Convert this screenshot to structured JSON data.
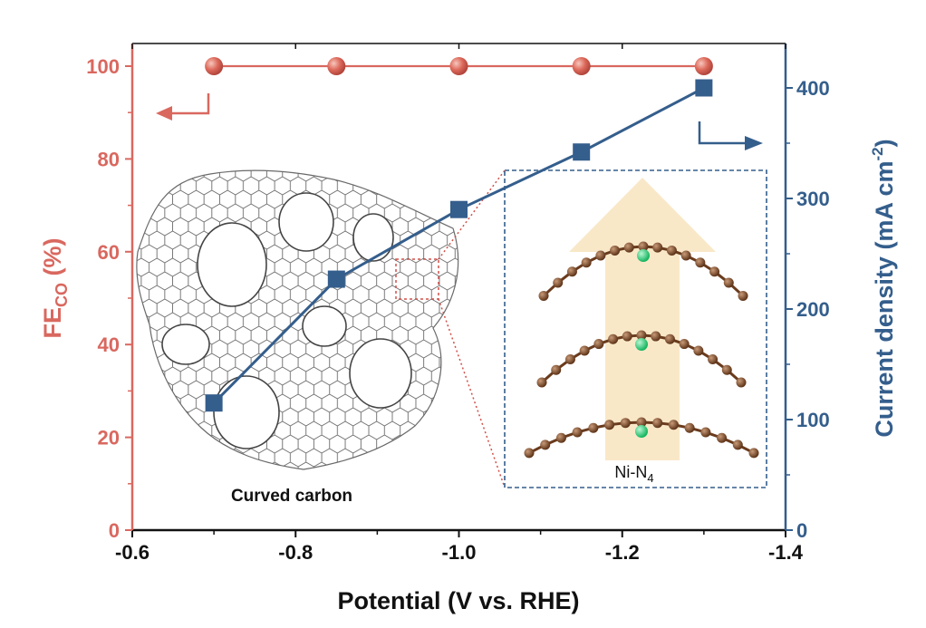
{
  "chart_data": {
    "type": "line",
    "x": [
      -0.7,
      -0.85,
      -1.0,
      -1.15,
      -1.3
    ],
    "xlabel": "Potential (V vs. RHE)",
    "xlim": [
      -0.6,
      -1.4
    ],
    "x_reversed": true,
    "x_ticks": [
      "-0.6",
      "-0.8",
      "-1.0",
      "-1.2",
      "-1.4"
    ],
    "ylabel_left": {
      "main": "FE",
      "sub": "CO",
      "rest": " (%)"
    },
    "ylim_left": [
      0,
      100
    ],
    "y_ticks_left": [
      "0",
      "20",
      "40",
      "60",
      "80",
      "100"
    ],
    "ylabel_right": {
      "main": "Current density (mA cm",
      "sup": "-2",
      "rest": ")"
    },
    "ylim_right": [
      0,
      420
    ],
    "y_ticks_right": [
      "0",
      "100",
      "200",
      "300",
      "400"
    ],
    "series": [
      {
        "axis": "left",
        "marker": "circle",
        "values": [
          100,
          100,
          100,
          100,
          100
        ]
      },
      {
        "axis": "right",
        "marker": "square",
        "values": [
          115,
          227,
          290,
          342,
          400
        ]
      }
    ],
    "annotations": {
      "curved_carbon": "Curved carbon",
      "ni_n4": {
        "main": "Ni-N",
        "sub": "4"
      }
    },
    "colors": {
      "left": "#d9685f",
      "right": "#345e8c",
      "inset_border": "#345e8c",
      "zoom_lines": "#d0504a",
      "carbon_lattice": "#555555",
      "arrow_fill": "#f9e8c8",
      "atom_c": "#7a4a2a",
      "atom_ni": "#2fcf7a"
    }
  }
}
